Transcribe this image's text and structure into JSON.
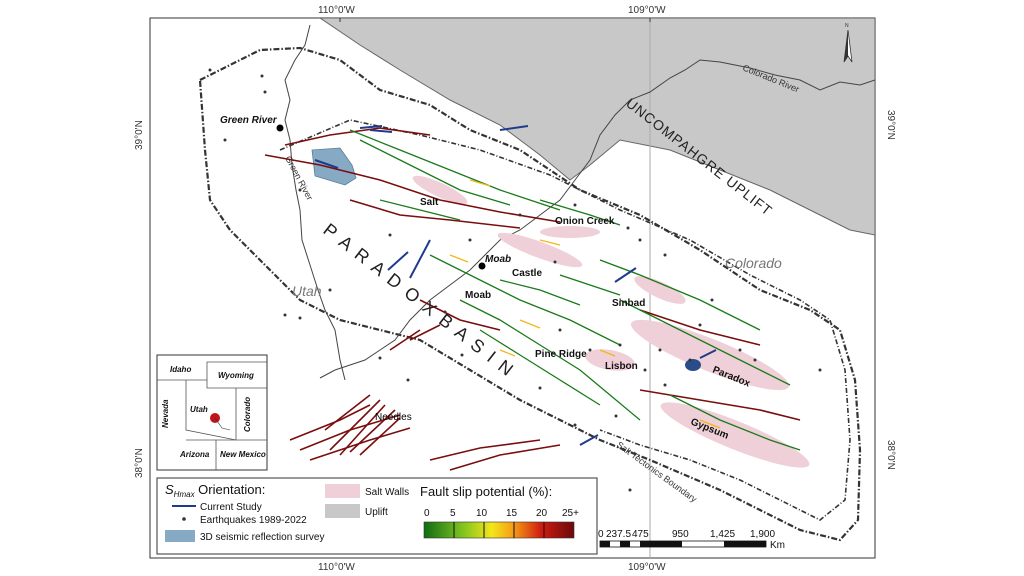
{
  "coords": {
    "top_w110": "110°0'W",
    "top_w109": "109°0'W",
    "bottom_w110": "110°0'W",
    "bottom_w109": "109°0'W",
    "left_n39": "39°0'N",
    "left_n38": "38°0'N",
    "right_n39": "39°0'N",
    "right_n38": "38°0'N"
  },
  "places": {
    "green_river": "Green River",
    "salt": "Salt",
    "onion_creek": "Onion Creek",
    "moab_city": "Moab",
    "moab": "Moab",
    "castle": "Castle",
    "sinbad": "Sinbad",
    "pine_ridge": "Pine Ridge",
    "lisbon": "Lisbon",
    "paradox": "Paradox",
    "gypsum": "Gypsum",
    "needles": "Needles"
  },
  "regions": {
    "basin": "P A R A D O X   B A S I N",
    "uplift": "UNCOMPAHGRE UPLIFT",
    "colorado": "Colorado",
    "utah": "Utah",
    "boundary": "Salt Tectonics Boundary",
    "colorado_river": "Colorado River",
    "green_river_river": "Green River"
  },
  "inset": {
    "idaho": "Idaho",
    "wyoming": "Wyoming",
    "nevada": "Nevada",
    "utah": "Utah",
    "colorado": "Colorado",
    "arizona": "Arizona",
    "new_mexico": "New Mexico"
  },
  "legend": {
    "shmax_s": "S",
    "shmax_sub": "Hmax",
    "shmax_rest": " Orientation:",
    "current_study": "Current Study",
    "earthquakes": "Earthquakes 1989-2022",
    "seismic": "3D seismic reflection survey",
    "salt_walls": "Salt Walls",
    "uplift": "Uplift",
    "fsp_title": "Fault slip potential (%):",
    "fsp_ticks": [
      "0",
      "5",
      "10",
      "15",
      "20",
      "25+"
    ]
  },
  "scale": {
    "labels": [
      "0",
      "237.5",
      "475",
      "950",
      "1,425",
      "1,900"
    ],
    "unit": "Km"
  },
  "colors": {
    "uplift": "#c8c8c8",
    "salt_walls": "#efcfd8",
    "seismic": "#86aac4",
    "current_study": "#1f3c8c",
    "fault_low": "#1a7a1a",
    "fault_high": "#7a0d0d"
  }
}
